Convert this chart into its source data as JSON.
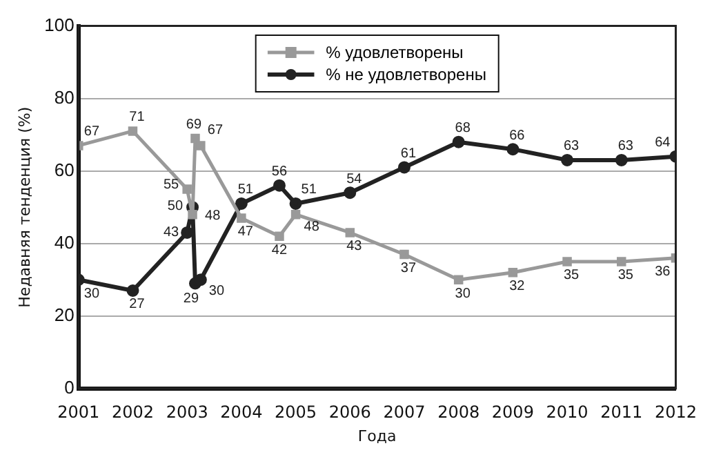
{
  "chart_data": {
    "type": "line",
    "xlabel": "Года",
    "ylabel": "Недавняя тенденция (%)",
    "x": [
      2001,
      2002,
      2003,
      2003.1,
      2003.15,
      2003.25,
      2004,
      2004.7,
      2005,
      2006,
      2007,
      2008,
      2009,
      2010,
      2011,
      2012
    ],
    "series": [
      {
        "name": "% удовлетворены",
        "color": "#999999",
        "marker": "square",
        "values": [
          67,
          71,
          55,
          48,
          69,
          67,
          47,
          42,
          48,
          43,
          37,
          30,
          32,
          35,
          35,
          36
        ]
      },
      {
        "name": "% не удовлетворены",
        "color": "#222222",
        "marker": "circle",
        "values": [
          30,
          27,
          43,
          50,
          29,
          30,
          51,
          56,
          51,
          54,
          61,
          68,
          66,
          63,
          63,
          64
        ]
      }
    ],
    "xlim": [
      2001,
      2012
    ],
    "xticks": [
      2001,
      2002,
      2003,
      2004,
      2005,
      2006,
      2007,
      2008,
      2009,
      2010,
      2011,
      2012
    ],
    "ylim": [
      0,
      100
    ],
    "yticks": [
      0,
      20,
      40,
      60,
      80,
      100
    ],
    "grid": "y",
    "legend": "top",
    "data_labels": true
  }
}
